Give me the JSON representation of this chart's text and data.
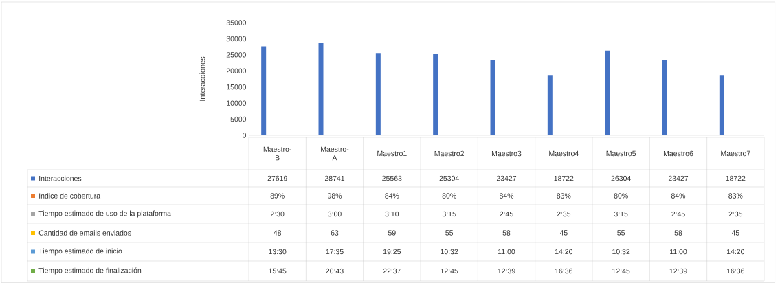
{
  "chart_data": {
    "type": "bar",
    "ylabel": "Interacciones",
    "categories": [
      "Maestro-B",
      "Maestro-A",
      "Maestro1",
      "Maestro2",
      "Maestro3",
      "Maestro4",
      "Maestro5",
      "Maestro6",
      "Maestro7"
    ],
    "series": [
      {
        "name": "Interacciones",
        "color": "#4472c4",
        "values": [
          27619,
          28741,
          25563,
          25304,
          23427,
          18722,
          26304,
          23427,
          18722
        ],
        "value_labels": [
          "27619",
          "28741",
          "25563",
          "25304",
          "23427",
          "18722",
          "26304",
          "23427",
          "18722"
        ]
      },
      {
        "name": "Indice de cobertura",
        "color": "#ed7d31",
        "values": [
          89,
          98,
          84,
          80,
          84,
          83,
          80,
          84,
          83
        ],
        "value_labels": [
          "89%",
          "98%",
          "84%",
          "80%",
          "84%",
          "83%",
          "80%",
          "84%",
          "83%"
        ]
      },
      {
        "name": "Tiempo estimado de uso de la plataforma",
        "color": "#a5a5a5",
        "values": [
          2.5,
          3,
          3.17,
          3.25,
          2.75,
          2.58,
          3.25,
          2.75,
          2.58
        ],
        "value_labels": [
          "2:30",
          "3:00",
          "3:10",
          "3:15",
          "2:45",
          "2:35",
          "3:15",
          "2:45",
          "2:35"
        ]
      },
      {
        "name": "Cantidad de emails enviados",
        "color": "#ffc000",
        "values": [
          48,
          63,
          59,
          55,
          58,
          45,
          55,
          58,
          45
        ],
        "value_labels": [
          "48",
          "63",
          "59",
          "55",
          "58",
          "45",
          "55",
          "58",
          "45"
        ]
      },
      {
        "name": "Tiempo estimado de inicio",
        "color": "#5b9bd5",
        "values": [
          13.5,
          17.58,
          19.42,
          10.53,
          11,
          14.33,
          10.53,
          11,
          14.33
        ],
        "value_labels": [
          "13:30",
          "17:35",
          "19:25",
          "10:32",
          "11:00",
          "14:20",
          "10:32",
          "11:00",
          "14:20"
        ]
      },
      {
        "name": "Tiempo estimado de finalización",
        "color": "#70ad47",
        "values": [
          15.75,
          20.72,
          22.62,
          12.75,
          12.65,
          16.6,
          12.75,
          12.65,
          16.6
        ],
        "value_labels": [
          "15:45",
          "20:43",
          "22:37",
          "12:45",
          "12:39",
          "16:36",
          "12:45",
          "12:39",
          "16:36"
        ]
      }
    ],
    "ylim": [
      0,
      35000
    ],
    "yticks": [
      0,
      5000,
      10000,
      15000,
      20000,
      25000,
      30000,
      35000
    ],
    "legend": "bottom"
  }
}
